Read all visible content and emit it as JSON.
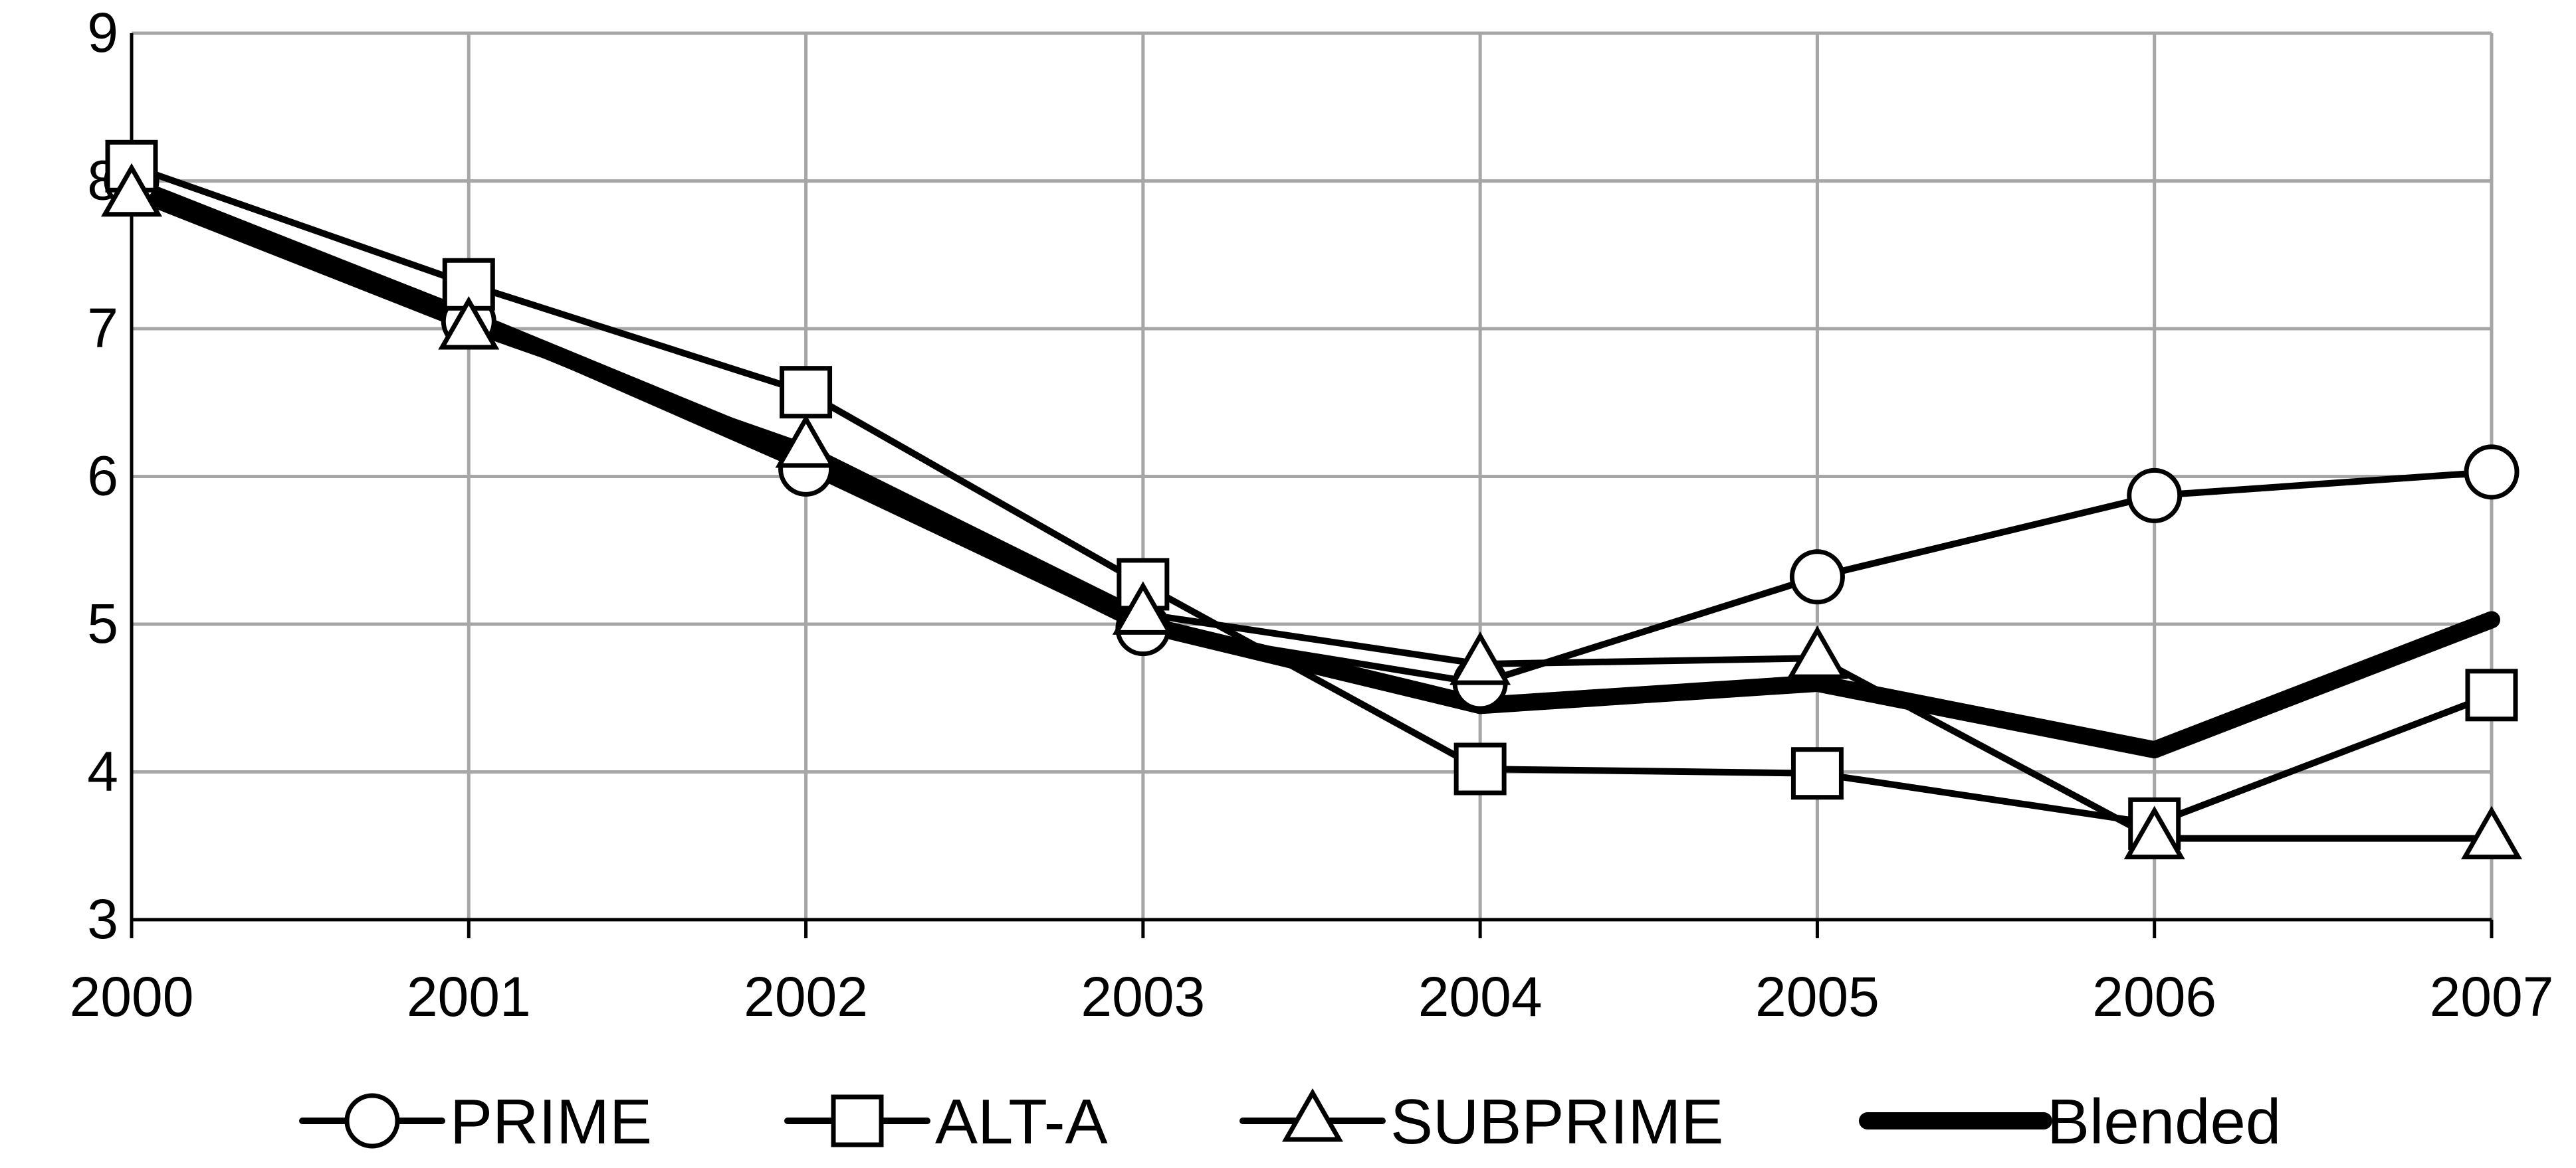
{
  "chart_data": {
    "type": "line",
    "title": "",
    "xlabel": "",
    "ylabel": "",
    "x": [
      "2000",
      "2001",
      "2002",
      "2003",
      "2004",
      "2005",
      "2006",
      "2007"
    ],
    "ylim": [
      3,
      9
    ],
    "yticks": [
      "3",
      "4",
      "5",
      "6",
      "7",
      "8",
      "9"
    ],
    "grid": true,
    "legend_position": "bottom",
    "series": [
      {
        "name": "PRIME",
        "marker": "circle",
        "line_weight": "normal",
        "color": "#000000",
        "values": [
          8.0,
          7.05,
          6.05,
          4.97,
          4.6,
          5.32,
          5.87,
          6.03
        ]
      },
      {
        "name": "ALT-A",
        "marker": "square",
        "line_weight": "normal",
        "color": "#000000",
        "values": [
          8.1,
          7.3,
          6.57,
          5.27,
          4.02,
          3.99,
          3.65,
          4.52
        ]
      },
      {
        "name": "SUBPRIME",
        "marker": "triangle",
        "line_weight": "normal",
        "color": "#000000",
        "values": [
          7.9,
          7.0,
          6.2,
          5.07,
          4.73,
          4.77,
          3.55,
          3.55
        ]
      },
      {
        "name": "Blended",
        "marker": "none",
        "line_weight": "heavy",
        "color": "#000000",
        "values": [
          7.97,
          7.07,
          6.13,
          5.0,
          4.45,
          4.6,
          4.15,
          5.03
        ]
      }
    ]
  }
}
